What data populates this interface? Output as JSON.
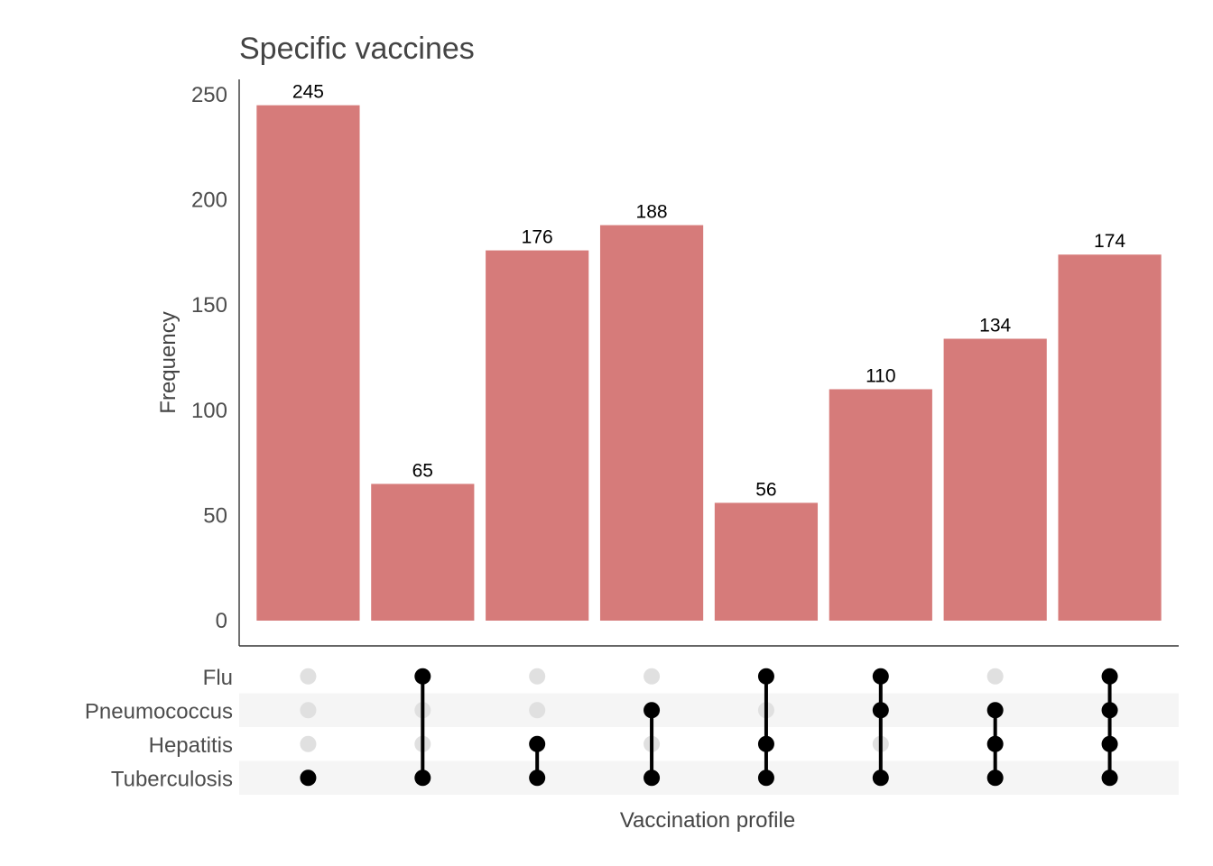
{
  "chart_data": {
    "type": "bar",
    "subtype": "upset",
    "title": "Specific vaccines",
    "xlabel": "Vaccination profile",
    "ylabel": "Frequency",
    "ylim": [
      0,
      260
    ],
    "yticks": [
      0,
      50,
      100,
      150,
      200,
      250
    ],
    "bar_color": "#d67b7a",
    "sets": [
      "Flu",
      "Pneumococcus",
      "Hepatitis",
      "Tuberculosis"
    ],
    "intersections": [
      {
        "members": [
          "Tuberculosis"
        ],
        "value": 245
      },
      {
        "members": [
          "Flu",
          "Tuberculosis"
        ],
        "value": 65
      },
      {
        "members": [
          "Hepatitis",
          "Tuberculosis"
        ],
        "value": 176
      },
      {
        "members": [
          "Pneumococcus",
          "Tuberculosis"
        ],
        "value": 188
      },
      {
        "members": [
          "Flu",
          "Hepatitis",
          "Tuberculosis"
        ],
        "value": 56
      },
      {
        "members": [
          "Flu",
          "Pneumococcus",
          "Tuberculosis"
        ],
        "value": 110
      },
      {
        "members": [
          "Pneumococcus",
          "Hepatitis",
          "Tuberculosis"
        ],
        "value": 134
      },
      {
        "members": [
          "Flu",
          "Pneumococcus",
          "Hepatitis",
          "Tuberculosis"
        ],
        "value": 174
      }
    ],
    "grid": false,
    "legend": "none"
  }
}
